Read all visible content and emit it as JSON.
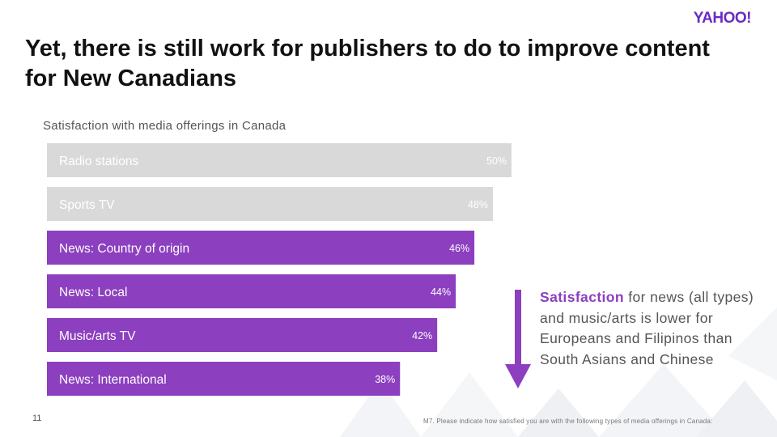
{
  "brand": {
    "logo": "YAHOO!",
    "accent": "#8c3fbf",
    "muted": "#d9d9d9"
  },
  "title": "Yet, there is still work for publishers to do to improve content for New Canadians",
  "chart_data": {
    "type": "bar",
    "orientation": "horizontal",
    "title": "Satisfaction with media offerings in Canada",
    "categories": [
      "Radio stations",
      "Sports TV",
      "News: Country of origin",
      "News: Local",
      "Music/arts TV",
      "News: International"
    ],
    "values": [
      50,
      48,
      46,
      44,
      42,
      38
    ],
    "labels": [
      "50%",
      "48%",
      "46%",
      "44%",
      "42%",
      "38%"
    ],
    "highlighted": [
      false,
      false,
      true,
      true,
      true,
      true
    ],
    "colors": {
      "highlight": "#8c3fbf",
      "muted": "#d9d9d9"
    },
    "xlim": [
      0,
      50
    ],
    "xlabel": "",
    "ylabel": "",
    "grid": false
  },
  "callout": {
    "highlight": "Satisfaction",
    "text": " for news (all types) and music/arts is lower for Europeans and Filipinos than South Asians and Chinese"
  },
  "page_number": "11",
  "footnote": "M7. Please indicate how satisfied you are with the following types of media offerings in Canada:"
}
